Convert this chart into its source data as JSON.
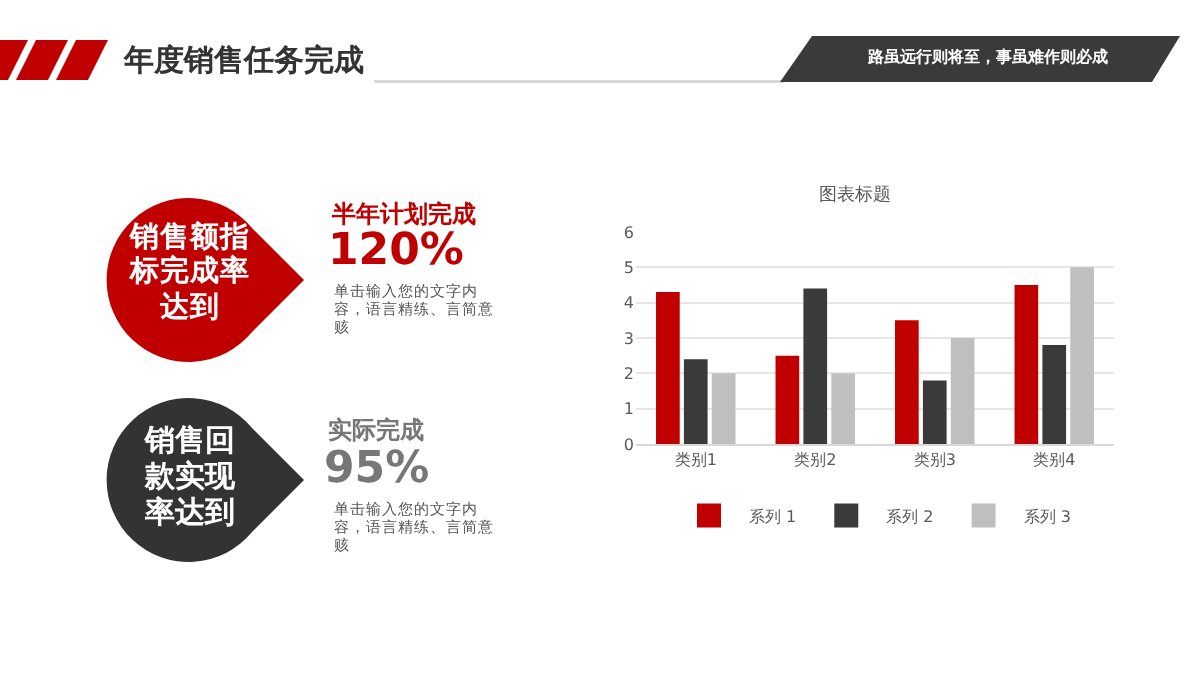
{
  "chart_data": {
    "type": "bar",
    "title": "年度销售任务完成",
    "subtitle": "图表标题",
    "categories": [
      "类别1",
      "类别2",
      "类别3",
      "类别4"
    ],
    "series": [
      {
        "name": "系列 1",
        "color": "#c00000",
        "values": [
          4.3,
          2.5,
          3.5,
          4.5
        ]
      },
      {
        "name": "系列 2",
        "color": "#3a3a3a",
        "values": [
          2.4,
          4.4,
          1.8,
          2.8
        ]
      },
      {
        "name": "系列 3",
        "color": "#bfbfbf",
        "values": [
          2,
          2,
          3,
          5
        ]
      }
    ],
    "ylim": [
      0,
      6
    ],
    "yticks": [
      0,
      1,
      2,
      3,
      4,
      5,
      6
    ],
    "grid": "y",
    "legend": "bottom",
    "annotations": [
      "路虽远行则将至，事虽难作则必成",
      "销售额指标完成率达到",
      "半年计划完成",
      "120%",
      "单击输入您的文字内容，语言精练、言简意赅",
      "销售回款实现率达到",
      "实际完成",
      "95%",
      "单击输入您的文字内容，语言精练、言简意赅"
    ]
  }
}
